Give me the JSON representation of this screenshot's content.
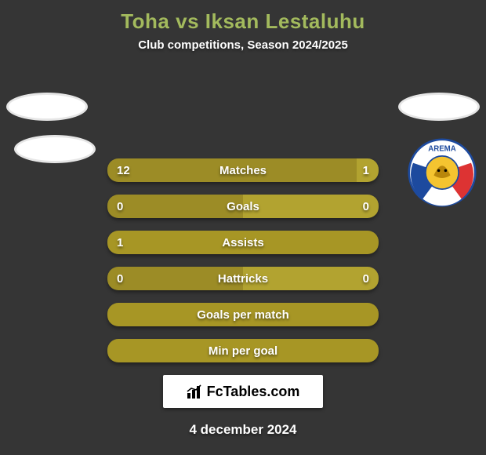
{
  "title_color": "#a3ba5d",
  "background_color": "#353535",
  "bar_colors": {
    "dark": "#9c8c26",
    "light": "#b2a330",
    "empty": "#a79625"
  },
  "title": "Toha vs Iksan Lestaluhu",
  "subtitle": "Club competitions, Season 2024/2025",
  "badge_text": "FcTables.com",
  "date": "4 december 2024",
  "bars": [
    {
      "label": "Matches",
      "left": "12",
      "right": "1",
      "left_pct": 92,
      "right_pct": 8,
      "has_values": true
    },
    {
      "label": "Goals",
      "left": "0",
      "right": "0",
      "left_pct": 50,
      "right_pct": 50,
      "has_values": true
    },
    {
      "label": "Assists",
      "left": "1",
      "right": "",
      "left_pct": 100,
      "right_pct": 0,
      "has_values": true
    },
    {
      "label": "Hattricks",
      "left": "0",
      "right": "0",
      "left_pct": 50,
      "right_pct": 50,
      "has_values": true
    },
    {
      "label": "Goals per match",
      "left": "",
      "right": "",
      "left_pct": 100,
      "right_pct": 0,
      "has_values": false
    },
    {
      "label": "Min per goal",
      "left": "",
      "right": "",
      "left_pct": 100,
      "right_pct": 0,
      "has_values": false
    }
  ]
}
